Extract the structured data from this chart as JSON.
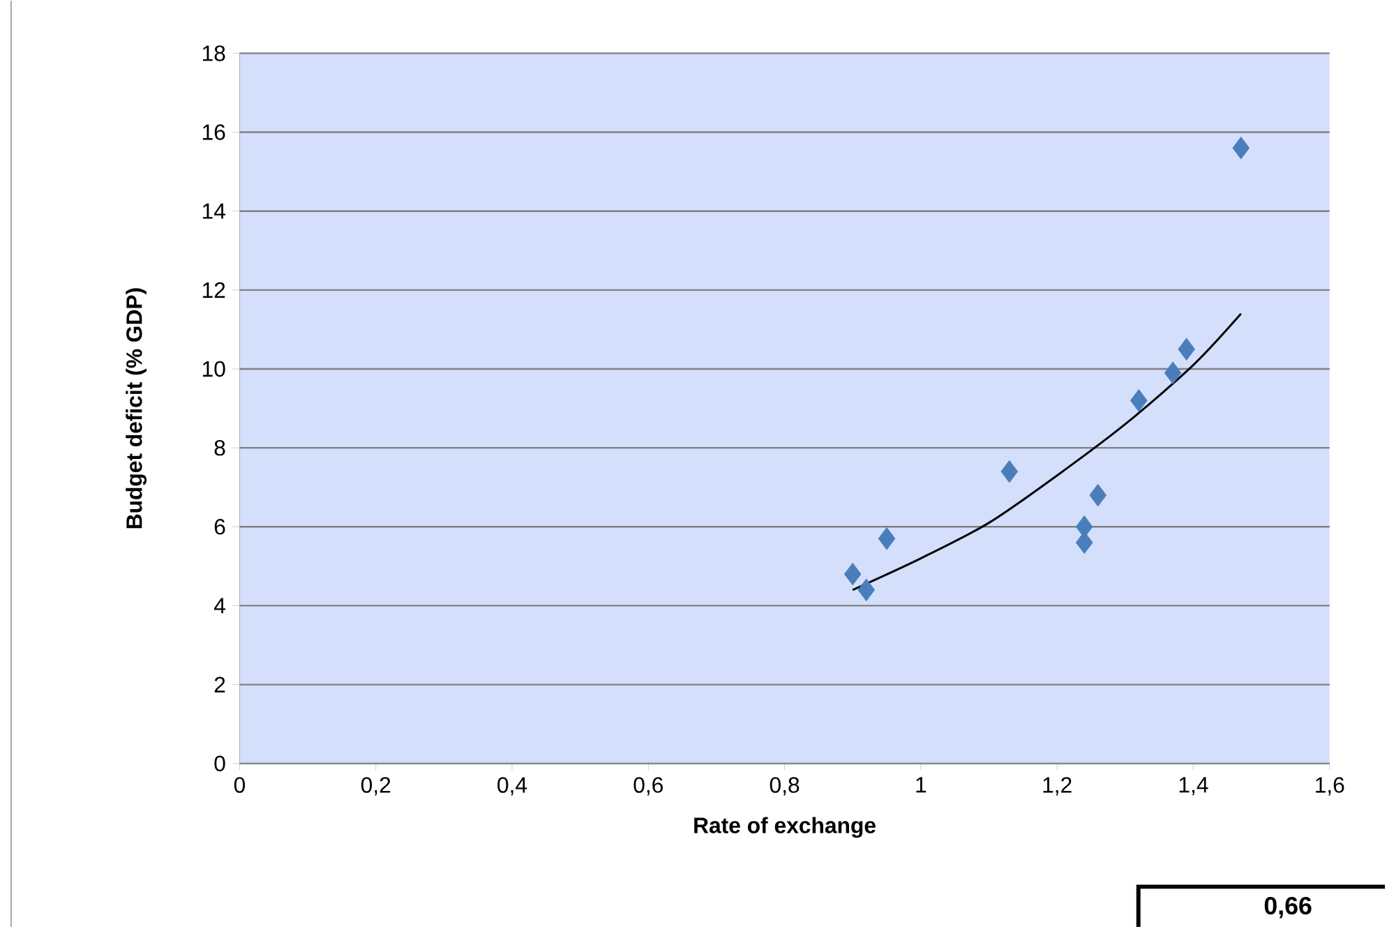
{
  "chart_data": {
    "type": "scatter",
    "xlabel": "Rate of exchange",
    "ylabel": "Budget deficit (% GDP)",
    "xlim": [
      0,
      1.6
    ],
    "ylim": [
      0,
      18
    ],
    "xticks": [
      0,
      {
        "value": 0.2,
        "label": "0,2"
      },
      {
        "value": 0.4,
        "label": "0,4"
      },
      {
        "value": 0.6,
        "label": "0,6"
      },
      {
        "value": 0.8,
        "label": "0,8"
      },
      1,
      {
        "value": 1.2,
        "label": "1,2"
      },
      {
        "value": 1.4,
        "label": "1,4"
      },
      {
        "value": 1.6,
        "label": "1,6"
      }
    ],
    "yticks": [
      0,
      2,
      4,
      6,
      8,
      10,
      12,
      14,
      16,
      18
    ],
    "grid": "y",
    "series": [
      {
        "color": "#4a7ebb",
        "marker": "diamond",
        "x": [
          0.9,
          0.92,
          0.95,
          1.13,
          1.24,
          1.24,
          1.26,
          1.32,
          1.37,
          1.39,
          1.47
        ],
        "values": [
          4.8,
          4.4,
          5.7,
          7.4,
          6.0,
          5.6,
          6.8,
          9.2,
          9.9,
          10.5,
          15.6
        ]
      },
      {
        "type": "line",
        "color": "#000000",
        "marker": "none",
        "x": [
          0.9,
          1.0,
          1.1,
          1.2,
          1.3,
          1.4,
          1.47
        ],
        "values": [
          4.4,
          5.2,
          6.1,
          7.3,
          8.6,
          10.1,
          11.4
        ]
      }
    ],
    "annotations": [
      "0,66"
    ]
  }
}
